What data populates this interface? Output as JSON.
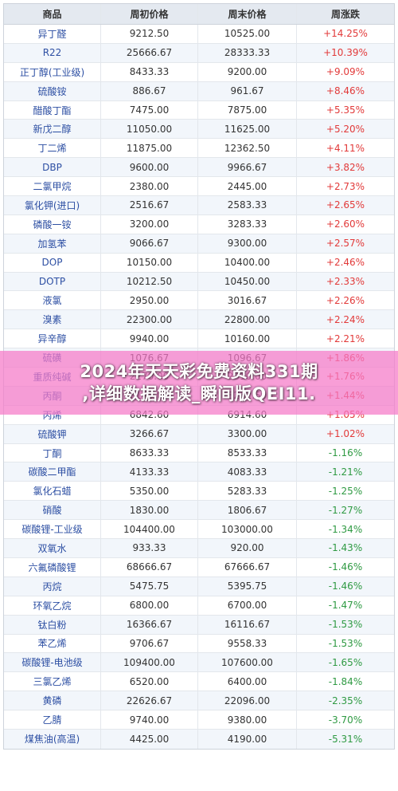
{
  "table": {
    "headers": [
      "商品",
      "周初价格",
      "周末价格",
      "周涨跌"
    ],
    "rows": [
      [
        "异丁醛",
        "9212.50",
        "10525.00",
        "+14.25%"
      ],
      [
        "R22",
        "25666.67",
        "28333.33",
        "+10.39%"
      ],
      [
        "正丁醇(工业级)",
        "8433.33",
        "9200.00",
        "+9.09%"
      ],
      [
        "硫酸铵",
        "886.67",
        "961.67",
        "+8.46%"
      ],
      [
        "醋酸丁酯",
        "7475.00",
        "7875.00",
        "+5.35%"
      ],
      [
        "新戊二醇",
        "11050.00",
        "11625.00",
        "+5.20%"
      ],
      [
        "丁二烯",
        "11875.00",
        "12362.50",
        "+4.11%"
      ],
      [
        "DBP",
        "9600.00",
        "9966.67",
        "+3.82%"
      ],
      [
        "二氯甲烷",
        "2380.00",
        "2445.00",
        "+2.73%"
      ],
      [
        "氯化钾(进口)",
        "2516.67",
        "2583.33",
        "+2.65%"
      ],
      [
        "磷酸一铵",
        "3200.00",
        "3283.33",
        "+2.60%"
      ],
      [
        "加氢苯",
        "9066.67",
        "9300.00",
        "+2.57%"
      ],
      [
        "DOP",
        "10150.00",
        "10400.00",
        "+2.46%"
      ],
      [
        "DOTP",
        "10212.50",
        "10450.00",
        "+2.33%"
      ],
      [
        "液氯",
        "2950.00",
        "3016.67",
        "+2.26%"
      ],
      [
        "溴素",
        "22300.00",
        "22800.00",
        "+2.24%"
      ],
      [
        "异辛醇",
        "9940.00",
        "10160.00",
        "+2.21%"
      ],
      [
        "硫磺",
        "1076.67",
        "1096.67",
        "+1.86%"
      ],
      [
        "重质纯碱",
        "2270.00",
        "2310.00",
        "+1.76%"
      ],
      [
        "丙酮",
        "8145.00",
        "8262.50",
        "+1.44%"
      ],
      [
        "丙烯",
        "6842.60",
        "6914.60",
        "+1.05%"
      ],
      [
        "硫酸钾",
        "3266.67",
        "3300.00",
        "+1.02%"
      ],
      [
        "丁酮",
        "8633.33",
        "8533.33",
        "-1.16%"
      ],
      [
        "碳酸二甲酯",
        "4133.33",
        "4083.33",
        "-1.21%"
      ],
      [
        "氯化石蜡",
        "5350.00",
        "5283.33",
        "-1.25%"
      ],
      [
        "硝酸",
        "1830.00",
        "1806.67",
        "-1.27%"
      ],
      [
        "碳酸锂-工业级",
        "104400.00",
        "103000.00",
        "-1.34%"
      ],
      [
        "双氧水",
        "933.33",
        "920.00",
        "-1.43%"
      ],
      [
        "六氟磷酸锂",
        "68666.67",
        "67666.67",
        "-1.46%"
      ],
      [
        "丙烷",
        "5475.75",
        "5395.75",
        "-1.46%"
      ],
      [
        "环氧乙烷",
        "6800.00",
        "6700.00",
        "-1.47%"
      ],
      [
        "钛白粉",
        "16366.67",
        "16116.67",
        "-1.53%"
      ],
      [
        "苯乙烯",
        "9706.67",
        "9558.33",
        "-1.53%"
      ],
      [
        "碳酸锂-电池级",
        "109400.00",
        "107600.00",
        "-1.65%"
      ],
      [
        "三氯乙烯",
        "6520.00",
        "6400.00",
        "-1.84%"
      ],
      [
        "黄磷",
        "22626.67",
        "22096.00",
        "-2.35%"
      ],
      [
        "乙腈",
        "9740.00",
        "9380.00",
        "-3.70%"
      ],
      [
        "煤焦油(高温)",
        "4425.00",
        "4190.00",
        "-5.31%"
      ]
    ]
  },
  "banner": {
    "line1": "2024年天天彩免费资料331期",
    "line2": ",详细数据解读_瞬间版QEI11."
  },
  "colors": {
    "up": "#e23a3a",
    "down": "#2f9a43",
    "banner_bg": "#f578c8"
  }
}
